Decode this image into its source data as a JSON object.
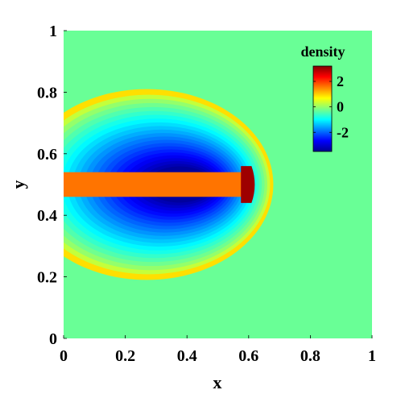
{
  "chart_data": {
    "type": "heatmap",
    "title": "",
    "xlabel": "x",
    "ylabel": "y",
    "xlim": [
      0,
      1
    ],
    "ylim": [
      0,
      1
    ],
    "x_ticks": [
      "0",
      "0.2",
      "0.4",
      "0.6",
      "0.8",
      "1"
    ],
    "y_ticks": [
      "0",
      "0.2",
      "0.4",
      "0.6",
      "0.8",
      "1"
    ],
    "colormap": "jet",
    "colorbar": {
      "title": "density",
      "range": [
        -3.5,
        3.2
      ],
      "ticks": [
        {
          "value": 2,
          "label": "2"
        },
        {
          "value": 0,
          "label": "0"
        },
        {
          "value": -2,
          "label": "-2"
        }
      ],
      "placement": "top-right"
    },
    "field_features": {
      "background_value": -0.3,
      "jet_beam": {
        "x_range": [
          0,
          0.58
        ],
        "y_range": [
          0.46,
          0.54
        ],
        "value": 1.6
      },
      "jet_head": {
        "x_range": [
          0.575,
          0.625
        ],
        "y_range": [
          0.44,
          0.56
        ],
        "value": 3.0
      },
      "bow_shock": {
        "center": [
          0.27,
          0.5
        ],
        "x_semi_axis": 0.41,
        "y_semi_axis": 0.31,
        "shell_value": 0.9
      },
      "cocoon": {
        "value_min": -3.3,
        "value_max": 0.3
      }
    }
  }
}
